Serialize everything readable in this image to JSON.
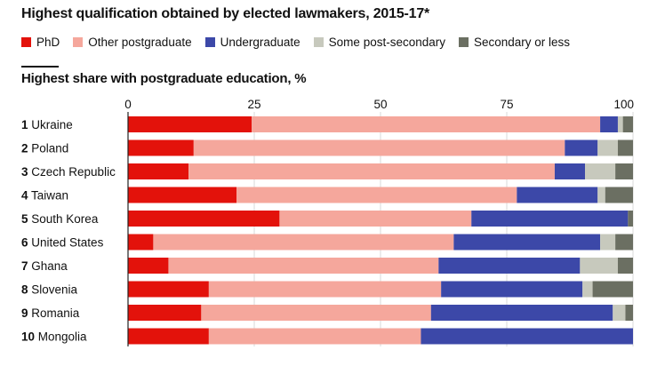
{
  "title": "Highest qualification obtained by elected lawmakers, 2015-17*",
  "subtitle": "Highest share with postgraduate education, %",
  "colors": {
    "PhD": "#e3120b",
    "Other postgraduate": "#f5a79c",
    "Undergraduate": "#3c48a8",
    "Some post-secondary": "#c7c9bd",
    "Secondary or less": "#6b6f62"
  },
  "chart_data": {
    "type": "bar",
    "orientation": "horizontal",
    "stacked": true,
    "title": "Highest qualification obtained by elected lawmakers, 2015-17*",
    "subtitle": "Highest share with postgraduate education, %",
    "xlim": [
      0,
      100
    ],
    "xticks": [
      "0",
      "25",
      "50",
      "75",
      "100"
    ],
    "grid": true,
    "legend_position": "top",
    "ranks": [
      "1",
      "2",
      "3",
      "4",
      "5",
      "6",
      "7",
      "8",
      "9",
      "10"
    ],
    "categories": [
      "Ukraine",
      "Poland",
      "Czech Republic",
      "Taiwan",
      "South Korea",
      "United States",
      "Ghana",
      "Slovenia",
      "Romania",
      "Mongolia"
    ],
    "series": [
      {
        "name": "PhD",
        "values": [
          24.5,
          13,
          12,
          21.5,
          30,
          5,
          8,
          16,
          14.5,
          16
        ]
      },
      {
        "name": "Other postgraduate",
        "values": [
          69,
          73.5,
          72.5,
          55.5,
          38,
          59.5,
          53.5,
          46,
          45.5,
          42
        ]
      },
      {
        "name": "Undergraduate",
        "values": [
          3.5,
          6.5,
          6,
          16,
          31,
          29,
          28,
          28,
          36,
          42
        ]
      },
      {
        "name": "Some post-secondary",
        "values": [
          1,
          4,
          6,
          1.5,
          0,
          3,
          7.5,
          2,
          2.5,
          0
        ]
      },
      {
        "name": "Secondary or less",
        "values": [
          2,
          3,
          3.5,
          5.5,
          1,
          3.5,
          3,
          8,
          1.5,
          0
        ]
      }
    ]
  }
}
